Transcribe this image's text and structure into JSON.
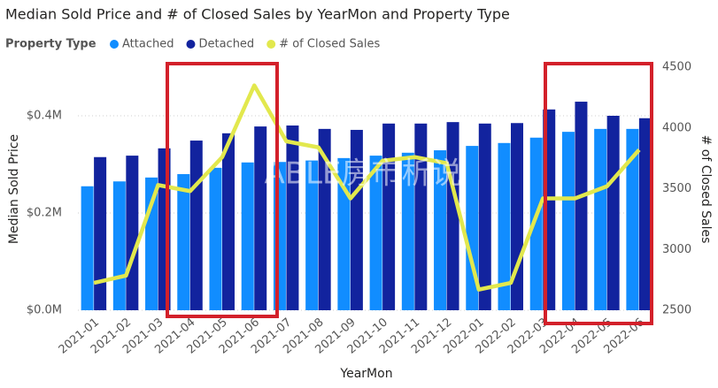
{
  "chart_data": {
    "type": "combo",
    "title": "Median Sold Price and # of Closed Sales by YearMon and Property Type",
    "legend_title": "Property Type",
    "xlabel": "YearMon",
    "ylabel": "Median Sold Price",
    "y2label": "# of Closed Sales",
    "watermark": "ABLE房市析说",
    "categories": [
      "2021-01",
      "2021-02",
      "2021-03",
      "2021-04",
      "2021-05",
      "2021-06",
      "2021-07",
      "2021-08",
      "2021-09",
      "2021-10",
      "2021-11",
      "2021-12",
      "2022-01",
      "2022-02",
      "2022-03",
      "2022-04",
      "2022-05",
      "2022-06"
    ],
    "series": [
      {
        "name": "Attached",
        "type": "bar",
        "color": "#118dff",
        "values": [
          255000,
          265000,
          273000,
          280000,
          293000,
          304000,
          305000,
          308000,
          313000,
          318000,
          324000,
          329000,
          338000,
          344000,
          355000,
          367000,
          373000,
          373000
        ]
      },
      {
        "name": "Detached",
        "type": "bar",
        "color": "#12239e",
        "values": [
          315000,
          318000,
          333000,
          349000,
          364000,
          378000,
          380000,
          373000,
          371000,
          384000,
          384000,
          387000,
          384000,
          385000,
          413000,
          429000,
          400000,
          395000
        ]
      },
      {
        "name": "# of Closed Sales",
        "type": "line",
        "axis": "y2",
        "color": "#e2e84d",
        "values": [
          2725,
          2785,
          3530,
          3480,
          3760,
          4350,
          3890,
          3840,
          3420,
          3730,
          3760,
          3710,
          2670,
          2725,
          3420,
          3420,
          3520,
          3820
        ]
      }
    ],
    "ylim": [
      0,
      500000
    ],
    "yticks": [
      {
        "value": 0,
        "label": "$0.0M"
      },
      {
        "value": 200000,
        "label": "$0.2M"
      },
      {
        "value": 400000,
        "label": "$0.4M"
      }
    ],
    "y2lim": [
      2500,
      4500
    ],
    "y2ticks": [
      2500,
      3000,
      3500,
      4000,
      4500
    ],
    "grid": true
  }
}
